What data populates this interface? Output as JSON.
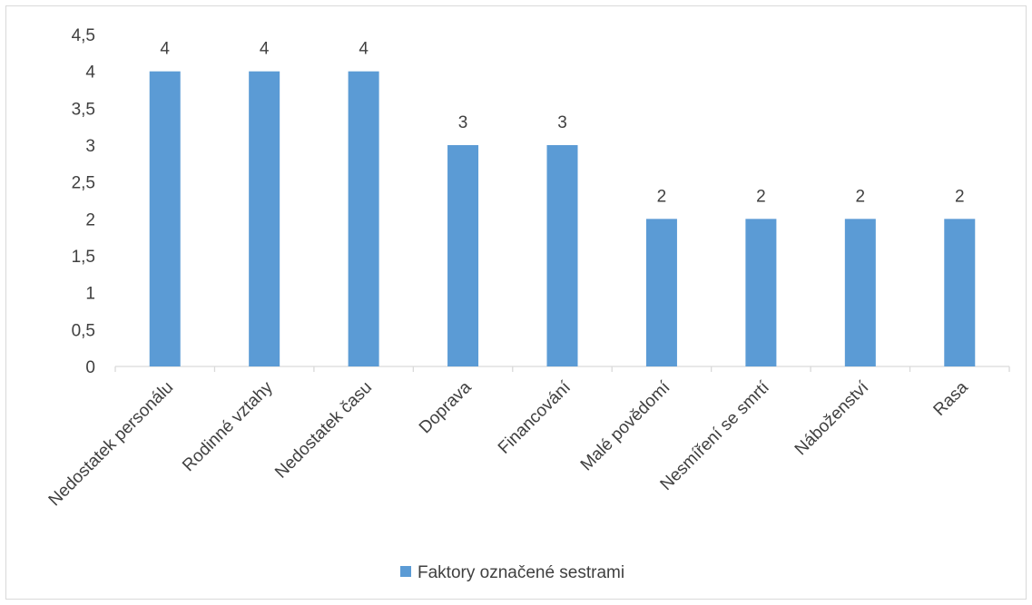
{
  "chart_data": {
    "type": "bar",
    "categories": [
      "Nedostatek personálu",
      "Rodinné vztahy",
      "Nedostatek času",
      "Doprava",
      "Financování",
      "Malé povědomí",
      "Nesmíření se smrtí",
      "Náboženství",
      "Rasa"
    ],
    "series": [
      {
        "name": "Faktory označené sestrami",
        "values": [
          4,
          4,
          4,
          3,
          3,
          2,
          2,
          2,
          2
        ],
        "color": "#5b9bd5"
      }
    ],
    "ylim": [
      0,
      4.5
    ],
    "yticks": [
      "0",
      "0,5",
      "1",
      "1,5",
      "2",
      "2,5",
      "3",
      "3,5",
      "4",
      "4,5"
    ],
    "data_labels": [
      "4",
      "4",
      "4",
      "3",
      "3",
      "2",
      "2",
      "2",
      "2"
    ],
    "grid": false,
    "legend_position": "bottom"
  }
}
